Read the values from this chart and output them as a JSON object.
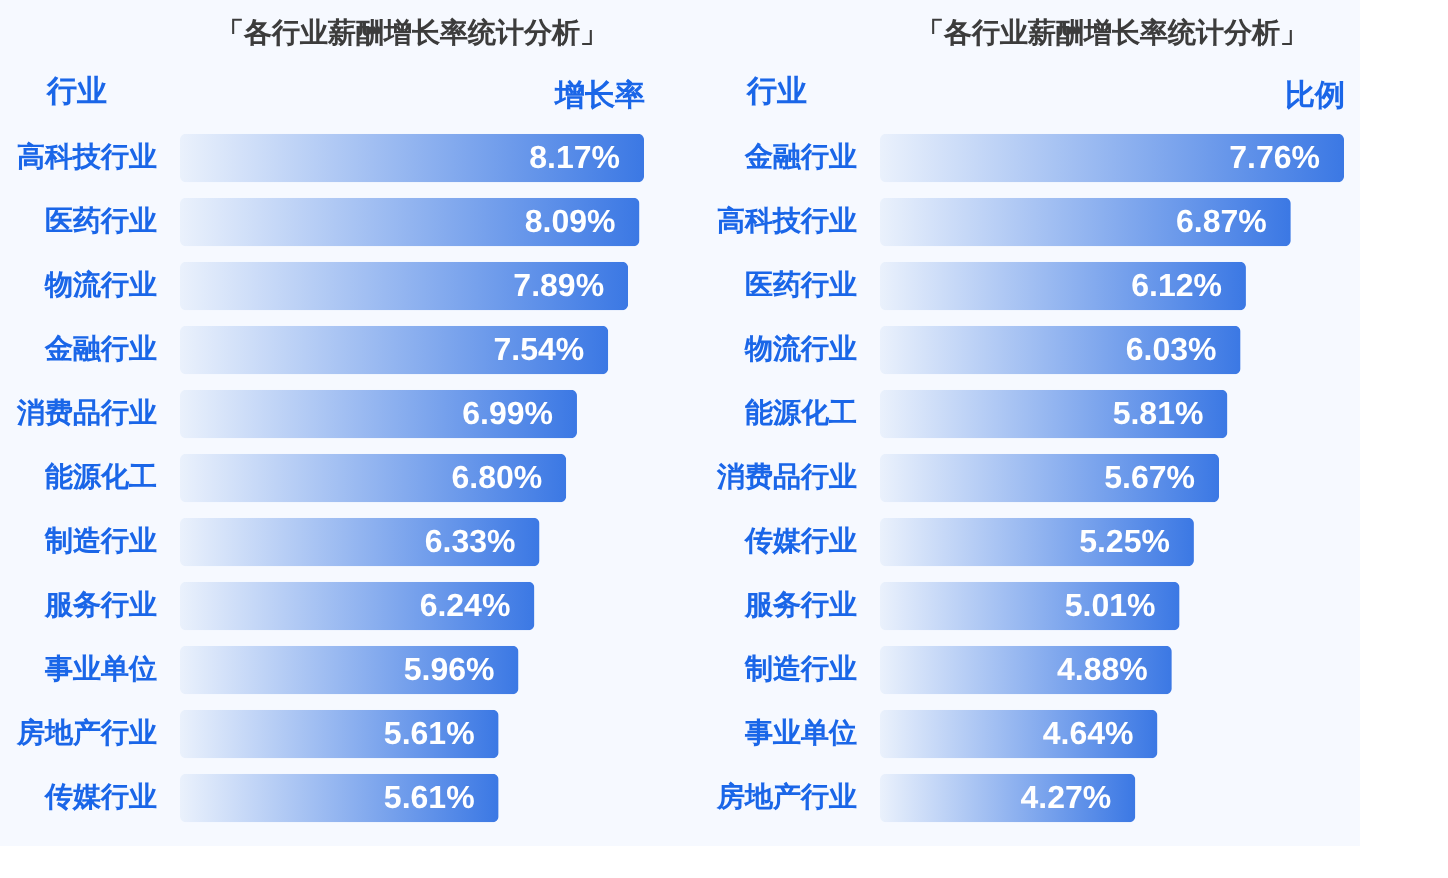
{
  "chart_data": [
    {
      "type": "bar",
      "orientation": "horizontal",
      "title": "「各行业薪酬增长率统计分析」",
      "ylabel": "行业",
      "xlabel": "增长率",
      "tick_labels": "y",
      "color": "#3b78e4",
      "categories": [
        "高科技行业",
        "医药行业",
        "物流行业",
        "金融行业",
        "消费品行业",
        "能源化工",
        "制造行业",
        "服务行业",
        "事业单位",
        "房地产行业",
        "传媒行业"
      ],
      "values": [
        8.17,
        8.09,
        7.89,
        7.54,
        6.99,
        6.8,
        6.33,
        6.24,
        5.96,
        5.61,
        5.61
      ],
      "value_labels": [
        "8.17%",
        "8.09%",
        "7.89%",
        "7.54%",
        "6.99%",
        "6.80%",
        "6.33%",
        "6.24%",
        "5.96%",
        "5.61%",
        "5.61%"
      ]
    },
    {
      "type": "bar",
      "orientation": "horizontal",
      "title": "「各行业薪酬增长率统计分析」",
      "ylabel": "行业",
      "xlabel": "比例",
      "tick_labels": "y",
      "color": "#3b78e4",
      "categories": [
        "金融行业",
        "高科技行业",
        "医药行业",
        "物流行业",
        "能源化工",
        "消费品行业",
        "传媒行业",
        "服务行业",
        "制造行业",
        "事业单位",
        "房地产行业"
      ],
      "values": [
        7.76,
        6.87,
        6.12,
        6.03,
        5.81,
        5.67,
        5.25,
        5.01,
        4.88,
        4.64,
        4.27
      ],
      "value_labels": [
        "7.76%",
        "6.87%",
        "6.12%",
        "6.03%",
        "5.81%",
        "5.67%",
        "5.25%",
        "5.01%",
        "4.88%",
        "4.64%",
        "4.27%"
      ]
    }
  ]
}
